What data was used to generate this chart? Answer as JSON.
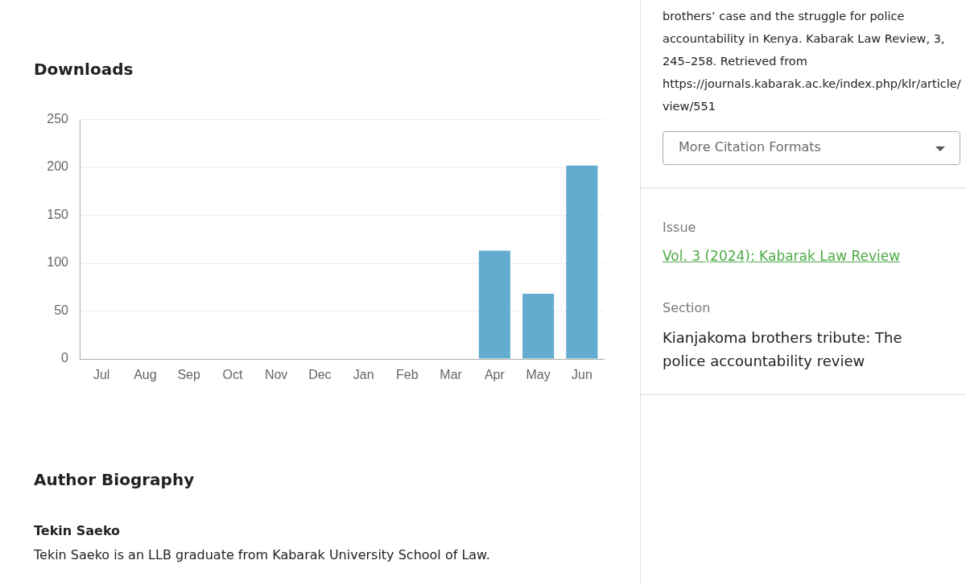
{
  "chart_data": {
    "type": "bar",
    "title": "Downloads",
    "categories": [
      "Jul",
      "Aug",
      "Sep",
      "Oct",
      "Nov",
      "Dec",
      "Jan",
      "Feb",
      "Mar",
      "Apr",
      "May",
      "Jun"
    ],
    "values": [
      0,
      0,
      0,
      0,
      0,
      0,
      0,
      0,
      0,
      113,
      68,
      202
    ],
    "color": "#63acd0",
    "ylim": [
      0,
      250
    ],
    "yticks": [
      0,
      50,
      100,
      150,
      200,
      250
    ],
    "grid": "y",
    "annotations": [
      "brothers’ case and the struggle for police accountability in Kenya. Kabarak Law Review, 3, 245–258. Retrieved from https://journals.kabarak.ac.ke/index.php/klr/article/view/551",
      "More Citation Formats",
      "Issue",
      "Vol. 3 (2024): Kabarak Law Review",
      "Section",
      "Kianjakoma brothers tribute: The police accountability review",
      "Author Biography",
      "Tekin Saeko",
      "Tekin Saeko is an LLB graduate from Kabarak University School of Law."
    ]
  }
}
